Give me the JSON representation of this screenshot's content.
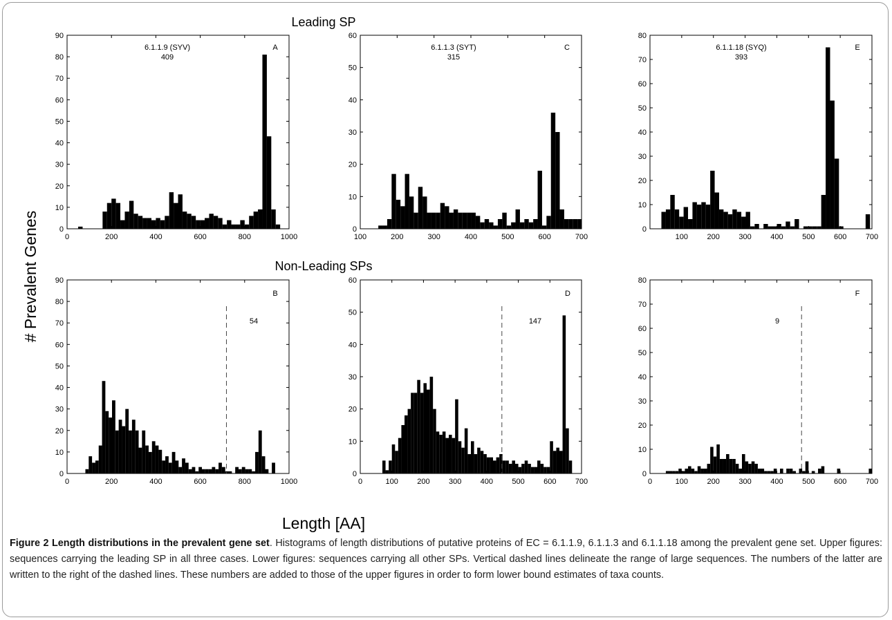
{
  "figure": {
    "ylabel": "# Prevalent Genes",
    "xlabel": "Length [AA]",
    "row_titles": [
      "Leading SP",
      "Non-Leading SPs"
    ]
  },
  "caption": {
    "title": "Figure 2 Length distributions in the prevalent gene set",
    "body": ". Histograms of length distributions of putative proteins of EC = 6.1.1.9, 6.1.1.3 and 6.1.1.18 among the prevalent gene set. Upper figures: sequences carrying the leading SP in all three cases. Lower figures: sequences carrying all other SPs. Vertical dashed lines delineate the range of large sequences. The numbers of the latter are written to the right of the dashed lines. These numbers are added to those of the upper figures in order to form lower bound estimates of taxa counts."
  },
  "chart_data": [
    {
      "id": "A",
      "type": "bar",
      "letter": "A",
      "annotation": [
        "6.1.1.9 (SYV)",
        "409"
      ],
      "xlim": [
        0,
        1000
      ],
      "ylim": [
        0,
        90
      ],
      "binwidth": 20,
      "xticks": [
        0,
        200,
        400,
        600,
        800,
        1000
      ],
      "yticks": [
        0,
        10,
        20,
        30,
        40,
        50,
        60,
        70,
        80,
        90
      ],
      "x": [
        60,
        170,
        190,
        210,
        230,
        250,
        270,
        290,
        310,
        330,
        350,
        370,
        390,
        410,
        430,
        450,
        470,
        490,
        510,
        530,
        550,
        570,
        590,
        610,
        630,
        650,
        670,
        690,
        710,
        730,
        750,
        770,
        790,
        810,
        830,
        850,
        870,
        890,
        910,
        930,
        950
      ],
      "values": [
        1,
        8,
        12,
        14,
        12,
        4,
        8,
        13,
        7,
        6,
        5,
        5,
        4,
        5,
        4,
        6,
        17,
        12,
        16,
        8,
        7,
        6,
        4,
        4,
        5,
        7,
        6,
        5,
        2,
        4,
        2,
        2,
        4,
        2,
        6,
        8,
        9,
        81,
        43,
        9,
        2
      ]
    },
    {
      "id": "C",
      "type": "bar",
      "letter": "C",
      "annotation": [
        "6.1.1.3 (SYT)",
        "315"
      ],
      "xlim": [
        100,
        700
      ],
      "ylim": [
        0,
        60
      ],
      "binwidth": 12,
      "xticks": [
        100,
        200,
        300,
        400,
        500,
        600,
        700
      ],
      "yticks": [
        0,
        10,
        20,
        30,
        40,
        50,
        60
      ],
      "x": [
        155,
        167,
        179,
        191,
        203,
        215,
        227,
        239,
        251,
        263,
        275,
        287,
        299,
        311,
        323,
        335,
        347,
        359,
        371,
        383,
        395,
        407,
        419,
        431,
        443,
        455,
        467,
        479,
        491,
        503,
        515,
        527,
        539,
        551,
        563,
        575,
        587,
        599,
        611,
        623,
        635,
        647,
        659,
        671,
        683,
        695
      ],
      "values": [
        1,
        1,
        3,
        17,
        9,
        7,
        17,
        10,
        5,
        13,
        10,
        5,
        5,
        5,
        8,
        7,
        5,
        6,
        5,
        5,
        5,
        5,
        4,
        2,
        3,
        2,
        1,
        3,
        5,
        1,
        2,
        6,
        2,
        3,
        2,
        3,
        18,
        1,
        4,
        36,
        30,
        6,
        3,
        3,
        3,
        3
      ]
    },
    {
      "id": "E",
      "type": "bar",
      "letter": "E",
      "annotation": [
        "6.1.1.18 (SYQ)",
        "393"
      ],
      "xlim": [
        0,
        700
      ],
      "ylim": [
        0,
        80
      ],
      "binwidth": 14,
      "xticks": [
        100,
        200,
        300,
        400,
        500,
        600,
        700
      ],
      "yticks": [
        0,
        10,
        20,
        30,
        40,
        50,
        60,
        70,
        80
      ],
      "x": [
        43,
        57,
        71,
        85,
        99,
        113,
        127,
        141,
        155,
        169,
        183,
        197,
        211,
        225,
        239,
        253,
        267,
        281,
        295,
        309,
        323,
        337,
        351,
        365,
        379,
        393,
        407,
        421,
        435,
        449,
        463,
        477,
        491,
        505,
        519,
        533,
        547,
        561,
        575,
        589,
        603,
        617,
        631,
        645,
        659,
        673,
        687
      ],
      "values": [
        7,
        8,
        14,
        8,
        5,
        9,
        4,
        11,
        10,
        11,
        10,
        24,
        15,
        8,
        7,
        6,
        8,
        7,
        5,
        7,
        1,
        2,
        0,
        2,
        1,
        1,
        2,
        1,
        3,
        1,
        4,
        0,
        1,
        1,
        1,
        1,
        14,
        75,
        53,
        29,
        1,
        0,
        0,
        0,
        0,
        0,
        6
      ]
    },
    {
      "id": "B",
      "type": "bar",
      "letter": "B",
      "annotation": [
        "54"
      ],
      "xlim": [
        0,
        1000
      ],
      "ylim": [
        0,
        90
      ],
      "binwidth": 15,
      "dashed_x": 718,
      "xticks": [
        0,
        200,
        400,
        600,
        800,
        1000
      ],
      "yticks": [
        0,
        10,
        20,
        30,
        40,
        50,
        60,
        70,
        80,
        90
      ],
      "x": [
        90,
        105,
        120,
        135,
        150,
        165,
        180,
        195,
        210,
        225,
        240,
        255,
        270,
        285,
        300,
        315,
        330,
        345,
        360,
        375,
        390,
        405,
        420,
        435,
        450,
        465,
        480,
        495,
        510,
        525,
        540,
        555,
        570,
        585,
        600,
        615,
        630,
        645,
        660,
        675,
        690,
        705,
        720,
        735,
        765,
        780,
        795,
        810,
        825,
        840,
        855,
        870,
        885,
        900,
        915,
        930
      ],
      "values": [
        2,
        8,
        5,
        6,
        13,
        43,
        29,
        26,
        34,
        20,
        25,
        22,
        30,
        20,
        25,
        20,
        12,
        20,
        13,
        10,
        15,
        13,
        11,
        6,
        8,
        5,
        10,
        6,
        3,
        7,
        5,
        2,
        3,
        1,
        3,
        2,
        2,
        2,
        3,
        2,
        5,
        3,
        1,
        1,
        3,
        2,
        3,
        2,
        2,
        1,
        10,
        20,
        8,
        2,
        0,
        5
      ]
    },
    {
      "id": "D",
      "type": "bar",
      "letter": "D",
      "annotation": [
        "147"
      ],
      "xlim": [
        0,
        700
      ],
      "ylim": [
        0,
        60
      ],
      "binwidth": 10,
      "dashed_x": 448,
      "xticks": [
        0,
        100,
        200,
        300,
        400,
        500,
        600,
        700
      ],
      "yticks": [
        0,
        10,
        20,
        30,
        40,
        50,
        60
      ],
      "x": [
        75,
        85,
        95,
        105,
        115,
        125,
        135,
        145,
        155,
        165,
        175,
        185,
        195,
        205,
        215,
        225,
        235,
        245,
        255,
        265,
        275,
        285,
        295,
        305,
        315,
        325,
        335,
        345,
        355,
        365,
        375,
        385,
        395,
        405,
        415,
        425,
        435,
        445,
        455,
        465,
        475,
        485,
        495,
        505,
        515,
        525,
        535,
        545,
        555,
        565,
        575,
        585,
        595,
        605,
        615,
        625,
        635,
        645,
        655,
        665
      ],
      "values": [
        4,
        1,
        4,
        9,
        7,
        11,
        15,
        18,
        20,
        25,
        25,
        29,
        25,
        28,
        26,
        30,
        20,
        13,
        12,
        13,
        11,
        12,
        11,
        23,
        10,
        8,
        14,
        6,
        10,
        6,
        8,
        7,
        6,
        5,
        5,
        4,
        5,
        6,
        4,
        4,
        3,
        4,
        3,
        2,
        3,
        4,
        3,
        2,
        2,
        4,
        3,
        2,
        2,
        10,
        7,
        8,
        7,
        49,
        14,
        4
      ]
    },
    {
      "id": "F",
      "type": "bar",
      "letter": "F",
      "annotation": [
        "9"
      ],
      "xlim": [
        0,
        700
      ],
      "ylim": [
        0,
        80
      ],
      "binwidth": 10,
      "dashed_x": 478,
      "xticks": [
        0,
        100,
        200,
        300,
        400,
        500,
        600,
        700
      ],
      "yticks": [
        0,
        10,
        20,
        30,
        40,
        50,
        60,
        70,
        80
      ],
      "x": [
        55,
        65,
        75,
        85,
        95,
        105,
        115,
        125,
        135,
        145,
        155,
        165,
        175,
        185,
        195,
        205,
        215,
        225,
        235,
        245,
        255,
        265,
        275,
        285,
        295,
        305,
        315,
        325,
        335,
        345,
        355,
        365,
        375,
        385,
        395,
        405,
        415,
        425,
        435,
        445,
        455,
        465,
        475,
        485,
        495,
        505,
        515,
        525,
        535,
        545,
        555,
        565,
        575,
        585,
        595,
        605,
        615,
        625,
        635,
        645,
        655,
        665,
        675,
        685,
        695
      ],
      "values": [
        1,
        1,
        1,
        1,
        2,
        1,
        2,
        3,
        2,
        1,
        3,
        2,
        2,
        4,
        11,
        7,
        12,
        6,
        6,
        8,
        6,
        6,
        4,
        2,
        8,
        5,
        4,
        5,
        4,
        2,
        2,
        1,
        1,
        1,
        2,
        0,
        2,
        0,
        2,
        2,
        1,
        0,
        2,
        1,
        5,
        0,
        1,
        0,
        2,
        3,
        0,
        0,
        0,
        0,
        2,
        0,
        0,
        0,
        0,
        0,
        0,
        0,
        0,
        0,
        2
      ]
    }
  ]
}
